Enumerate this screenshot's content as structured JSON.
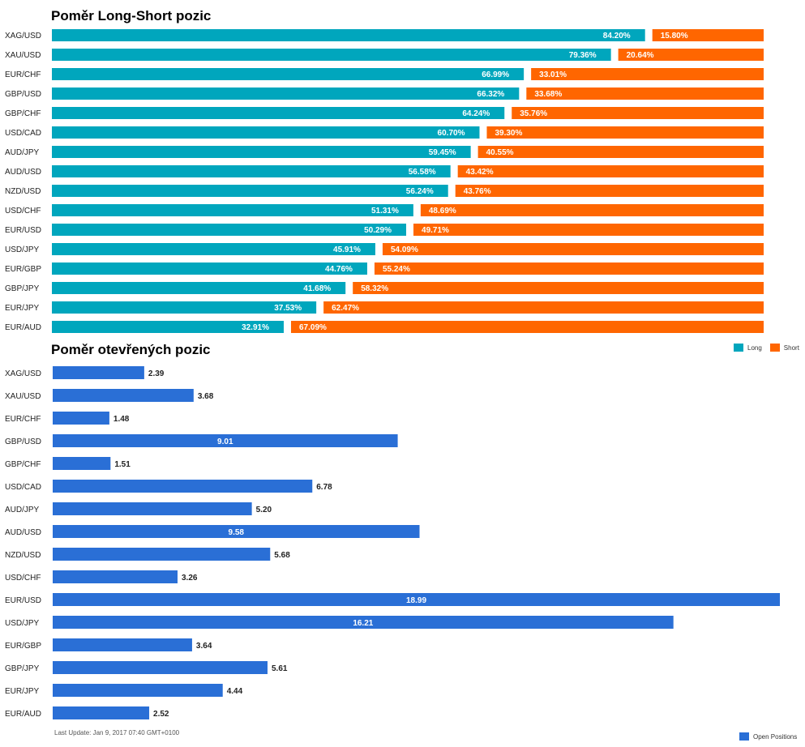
{
  "colors": {
    "long": "#00a6bd",
    "short": "#ff6600",
    "open": "#2a6fd6"
  },
  "chart_data": [
    {
      "type": "bar",
      "orientation": "horizontal",
      "stacked": true,
      "title": "Poměr Long-Short pozic",
      "categories": [
        "XAG/USD",
        "XAU/USD",
        "EUR/CHF",
        "GBP/USD",
        "GBP/CHF",
        "USD/CAD",
        "AUD/JPY",
        "AUD/USD",
        "NZD/USD",
        "USD/CHF",
        "EUR/USD",
        "USD/JPY",
        "EUR/GBP",
        "GBP/JPY",
        "EUR/JPY",
        "EUR/AUD"
      ],
      "series": [
        {
          "name": "Long",
          "values": [
            84.2,
            79.36,
            66.99,
            66.32,
            64.24,
            60.7,
            59.45,
            56.58,
            56.24,
            51.31,
            50.29,
            45.91,
            44.76,
            41.68,
            37.53,
            32.91
          ]
        },
        {
          "name": "Short",
          "values": [
            15.8,
            20.64,
            33.01,
            33.68,
            35.76,
            39.3,
            40.55,
            43.42,
            43.76,
            48.69,
            49.71,
            54.09,
            55.24,
            58.32,
            62.47,
            67.09
          ]
        }
      ],
      "labels": {
        "long": [
          "84.20%",
          "79.36%",
          "66.99%",
          "66.32%",
          "64.24%",
          "60.70%",
          "59.45%",
          "56.58%",
          "56.24%",
          "51.31%",
          "50.29%",
          "45.91%",
          "44.76%",
          "41.68%",
          "37.53%",
          "32.91%"
        ],
        "short": [
          "15.80%",
          "20.64%",
          "33.01%",
          "33.68%",
          "35.76%",
          "39.30%",
          "40.55%",
          "43.42%",
          "43.76%",
          "48.69%",
          "49.71%",
          "54.09%",
          "55.24%",
          "58.32%",
          "62.47%",
          "67.09%"
        ]
      },
      "xlim": [
        0,
        100
      ],
      "legend": "bottom-right"
    },
    {
      "type": "bar",
      "orientation": "horizontal",
      "title": "Poměr otevřených pozic",
      "categories": [
        "XAG/USD",
        "XAU/USD",
        "EUR/CHF",
        "GBP/USD",
        "GBP/CHF",
        "USD/CAD",
        "AUD/JPY",
        "AUD/USD",
        "NZD/USD",
        "USD/CHF",
        "EUR/USD",
        "USD/JPY",
        "EUR/GBP",
        "GBP/JPY",
        "EUR/JPY",
        "EUR/AUD"
      ],
      "series": [
        {
          "name": "Open Positions",
          "values": [
            2.39,
            3.68,
            1.48,
            9.01,
            1.51,
            6.78,
            5.2,
            9.58,
            5.68,
            3.26,
            18.99,
            16.21,
            3.64,
            5.61,
            4.44,
            2.52
          ]
        }
      ],
      "labels": [
        "2.39",
        "3.68",
        "1.48",
        "9.01",
        "1.51",
        "6.78",
        "5.20",
        "9.58",
        "5.68",
        "3.26",
        "18.99",
        "16.21",
        "3.64",
        "5.61",
        "4.44",
        "2.52"
      ],
      "xlim": [
        0,
        18.99
      ],
      "legend": "bottom-right"
    }
  ],
  "legend1": {
    "long": "Long",
    "short": "Short"
  },
  "legend2": {
    "open": "Open Positions"
  },
  "footer": "Last Update: Jan 9, 2017 07:40 GMT+0100"
}
